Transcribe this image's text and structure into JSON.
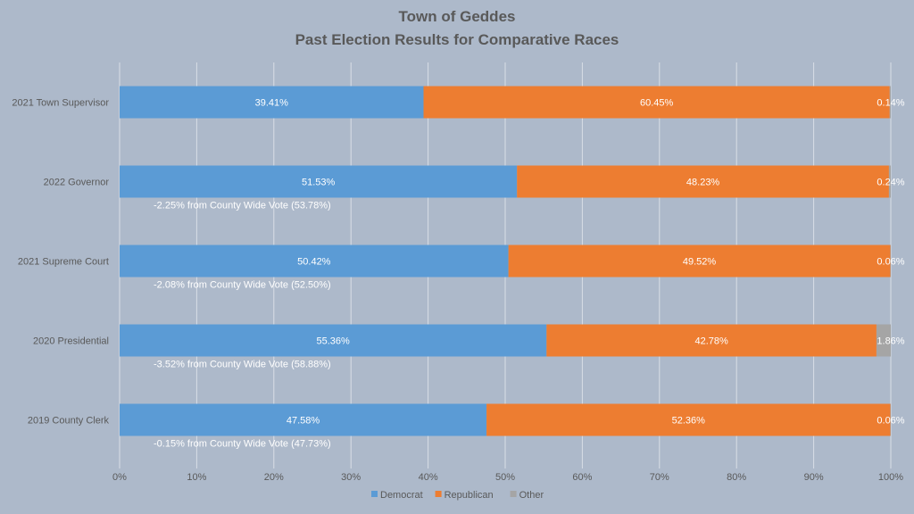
{
  "chart_data": {
    "type": "bar",
    "orientation": "horizontal",
    "stacked": true,
    "title": [
      "Town of Geddes",
      "Past Election Results for Comparative Races"
    ],
    "categories": [
      "2021 Town Supervisor",
      "2022 Governor",
      "2021 Supreme Court",
      "2020 Presidential",
      "2019 County Clerk"
    ],
    "series": [
      {
        "name": "Democrat",
        "color": "#5b9bd5",
        "values": [
          39.41,
          51.53,
          50.42,
          55.36,
          47.58
        ],
        "labels": [
          "39.41%",
          "51.53%",
          "50.42%",
          "55.36%",
          "47.58%"
        ]
      },
      {
        "name": "Republican",
        "color": "#ed7d31",
        "values": [
          60.45,
          48.23,
          49.52,
          42.78,
          52.36
        ],
        "labels": [
          "60.45%",
          "48.23%",
          "49.52%",
          "42.78%",
          "52.36%"
        ]
      },
      {
        "name": "Other",
        "color": "#a5a5a5",
        "values": [
          0.14,
          0.24,
          0.06,
          1.86,
          0.06
        ],
        "labels": [
          "0.14%",
          "0.24%",
          "0.06%",
          "1.86%",
          "0.06%"
        ]
      }
    ],
    "annotations": [
      "",
      "-2.25% from  County Wide Vote (53.78%)",
      "-2.08% from  County Wide Vote (52.50%)",
      "-3.52% from  County Wide Vote (58.88%)",
      "-0.15% from  County Wide Vote (47.73%)"
    ],
    "xlim": [
      0,
      100
    ],
    "x_ticks": [
      0,
      10,
      20,
      30,
      40,
      50,
      60,
      70,
      80,
      90,
      100
    ],
    "x_tick_labels": [
      "0%",
      "10%",
      "20%",
      "30%",
      "40%",
      "50%",
      "60%",
      "70%",
      "80%",
      "90%",
      "100%"
    ],
    "xlabel": "",
    "ylabel": "",
    "grid": true,
    "legend_position": "bottom",
    "background": "#adb9ca"
  }
}
